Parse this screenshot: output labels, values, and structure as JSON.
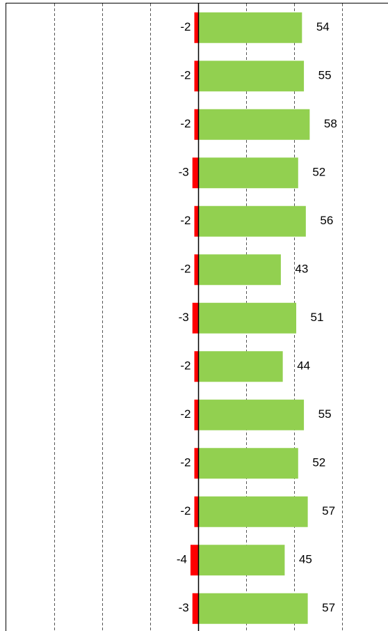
{
  "chart_data": {
    "type": "diverging_bar",
    "categories": [
      null,
      null,
      null,
      null,
      null,
      null,
      null,
      null,
      null,
      null,
      null,
      null,
      null
    ],
    "series": [
      {
        "color": "#ff0000",
        "values": [
          -2,
          -2,
          -2,
          -3,
          -2,
          -2,
          -3,
          -2,
          -2,
          -2,
          -2,
          -4,
          -3
        ]
      },
      {
        "color": "#92d050",
        "values": [
          54,
          55,
          58,
          52,
          56,
          43,
          51,
          44,
          55,
          52,
          57,
          45,
          57
        ]
      }
    ],
    "xlim": [
      -100,
      100
    ],
    "xticks": [
      -75,
      -50,
      -25,
      0,
      25,
      50,
      75
    ],
    "grid": true
  }
}
